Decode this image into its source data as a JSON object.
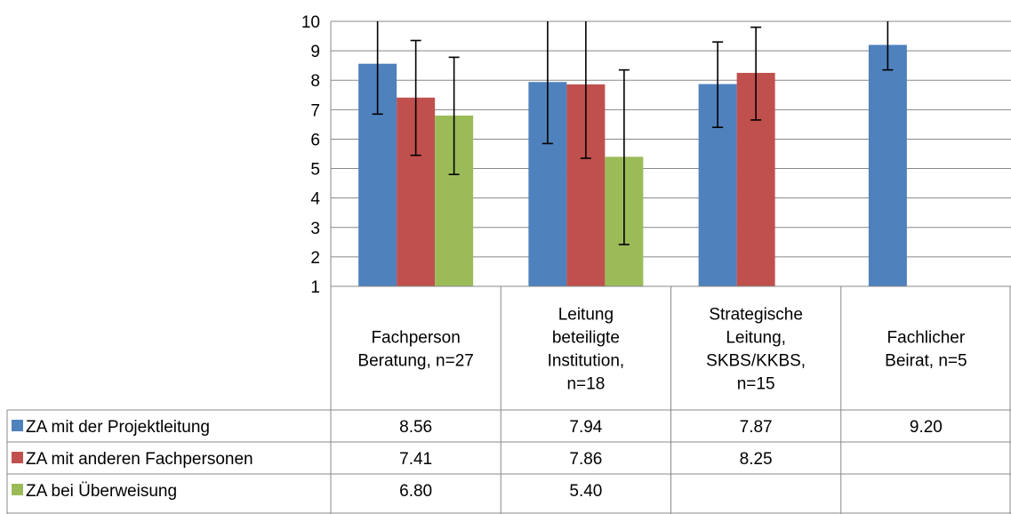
{
  "chart_data": {
    "type": "bar",
    "title": "",
    "xlabel": "",
    "ylabel": "",
    "ylim": [
      1,
      10
    ],
    "yticks": [
      1,
      2,
      3,
      4,
      5,
      6,
      7,
      8,
      9,
      10
    ],
    "grid": true,
    "legend": "data-table-left",
    "categories": [
      [
        "Fachperson",
        "Beratung, n=27"
      ],
      [
        "Leitung",
        "beteiligte",
        "Institution,",
        "n=18"
      ],
      [
        "Strategische",
        "Leitung,",
        "SKBS/KKBS,",
        "n=15"
      ],
      [
        "Fachlicher",
        "Beirat, n=5"
      ]
    ],
    "series": [
      {
        "name": "ZA mit der Projektleitung",
        "color": "#4f81bd",
        "values": [
          8.56,
          7.94,
          7.87,
          9.2
        ],
        "labels": [
          "8.56",
          "7.94",
          "7.87",
          "9.20"
        ],
        "error_low": [
          6.85,
          5.85,
          6.4,
          8.35
        ],
        "error_high": [
          10.0,
          10.0,
          9.3,
          10.0
        ]
      },
      {
        "name": "ZA mit anderen Fachpersonen",
        "color": "#c0504d",
        "values": [
          7.41,
          7.86,
          8.25,
          null
        ],
        "labels": [
          "7.41",
          "7.86",
          "8.25",
          ""
        ],
        "error_low": [
          5.45,
          5.35,
          6.65,
          null
        ],
        "error_high": [
          9.35,
          10.0,
          9.8,
          null
        ]
      },
      {
        "name": "ZA bei Überweisung",
        "color": "#9bbb59",
        "values": [
          6.8,
          5.4,
          null,
          null
        ],
        "labels": [
          "6.80",
          "5.40",
          "",
          ""
        ],
        "error_low": [
          4.8,
          2.42,
          null,
          null
        ],
        "error_high": [
          8.78,
          8.35,
          null,
          null
        ]
      }
    ]
  }
}
